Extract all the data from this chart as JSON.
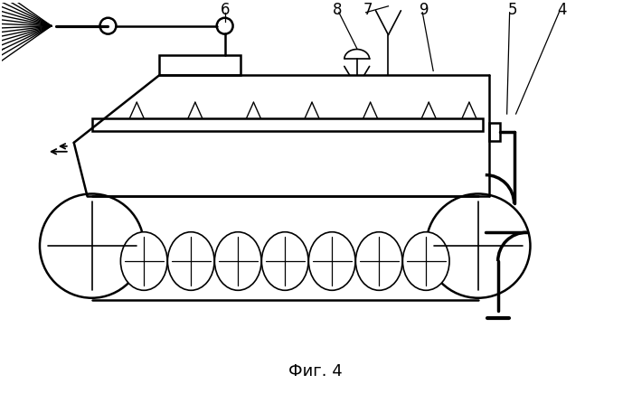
{
  "title": "Фиг. 4",
  "bg_color": "#ffffff",
  "line_color": "#000000",
  "fig_width": 6.99,
  "fig_height": 4.46,
  "dpi": 100
}
